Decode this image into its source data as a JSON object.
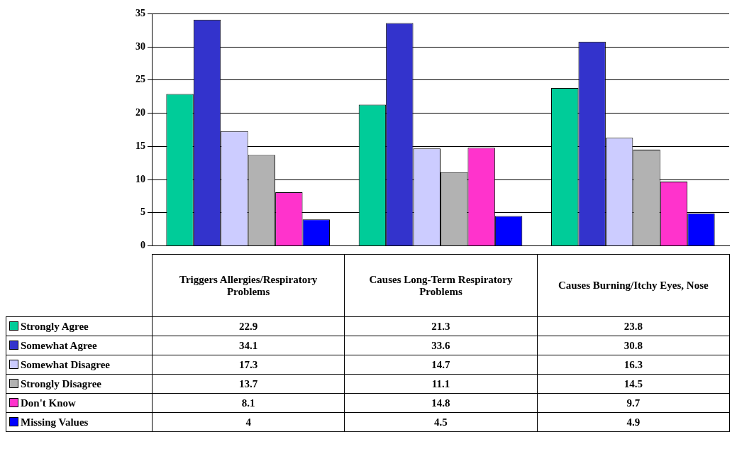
{
  "chart_data": {
    "type": "bar",
    "categories": [
      "Triggers Allergies/Respiratory Problems",
      "Causes Long-Term Respiratory Problems",
      "Causes Burning/Itchy Eyes, Nose"
    ],
    "series": [
      {
        "name": "Strongly Agree",
        "color": "#00cc99",
        "values": [
          22.9,
          21.3,
          23.8
        ]
      },
      {
        "name": "Somewhat Agree",
        "color": "#3333cc",
        "values": [
          34.1,
          33.6,
          30.8
        ]
      },
      {
        "name": "Somewhat Disagree",
        "color": "#ccccff",
        "values": [
          17.3,
          14.7,
          16.3
        ]
      },
      {
        "name": "Strongly Disagree",
        "color": "#b2b2b2",
        "values": [
          13.7,
          11.1,
          14.5
        ]
      },
      {
        "name": "Don't Know",
        "color": "#ff33cc",
        "values": [
          8.1,
          14.8,
          9.7
        ]
      },
      {
        "name": "Missing Values",
        "color": "#0000ff",
        "values": [
          4,
          4.5,
          4.9
        ]
      }
    ],
    "ylim": [
      0,
      35
    ],
    "yticks": [
      0,
      5,
      10,
      15,
      20,
      25,
      30,
      35
    ],
    "grid": "y",
    "legend": "bottom left",
    "data_labels": true
  }
}
